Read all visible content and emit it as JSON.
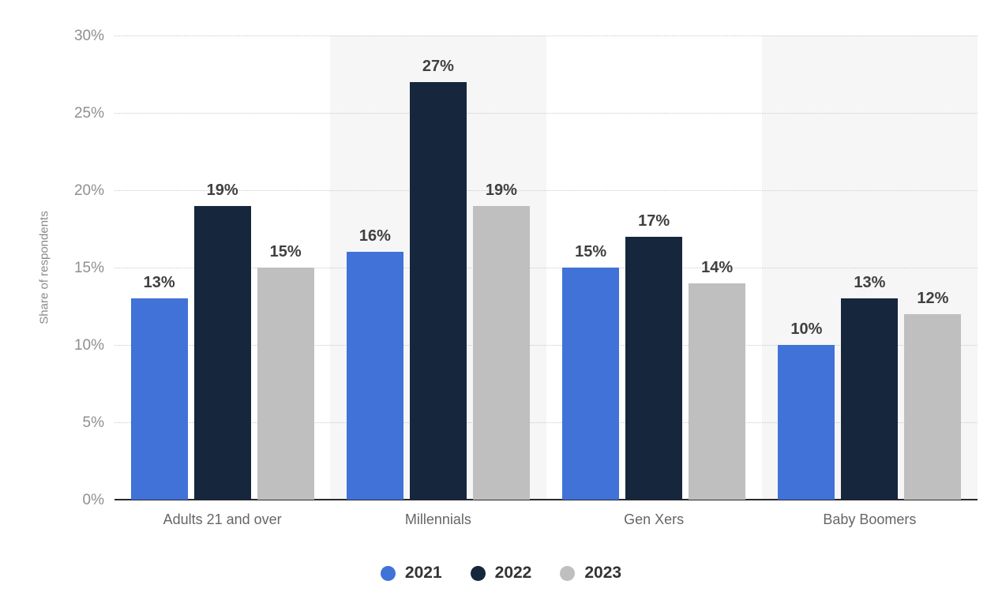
{
  "chart_data": {
    "type": "bar",
    "title": "",
    "xlabel": "",
    "ylabel": "Share of respondents",
    "categories": [
      "Adults 21 and over",
      "Millennials",
      "Gen Xers",
      "Baby Boomers"
    ],
    "series": [
      {
        "name": "2021",
        "color": "#4072d8",
        "values": [
          13,
          16,
          15,
          10
        ]
      },
      {
        "name": "2022",
        "color": "#16263d",
        "values": [
          19,
          27,
          17,
          13
        ]
      },
      {
        "name": "2023",
        "color": "#bfbfbf",
        "values": [
          15,
          19,
          14,
          12
        ]
      }
    ],
    "value_labels": [
      [
        "13%",
        "19%",
        "15%"
      ],
      [
        "16%",
        "27%",
        "19%"
      ],
      [
        "15%",
        "17%",
        "14%"
      ],
      [
        "10%",
        "13%",
        "12%"
      ]
    ],
    "ylim": [
      0,
      30
    ],
    "ytick_step": 5,
    "ytick_labels": [
      "0%",
      "5%",
      "10%",
      "15%",
      "20%",
      "25%",
      "30%"
    ],
    "grid": "horizontal-dotted",
    "legend_position": "bottom-center",
    "legend_entries": [
      "2021",
      "2022",
      "2023"
    ],
    "band_alt_color": "#f6f6f6",
    "axis_line_color": "#2a2a2a"
  }
}
